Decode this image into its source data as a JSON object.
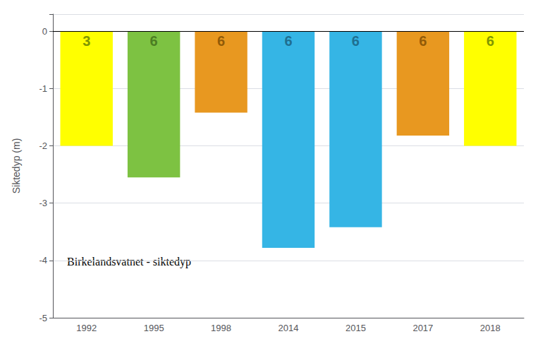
{
  "chart_data": {
    "type": "bar",
    "categories": [
      "1992",
      "1995",
      "1998",
      "2014",
      "2015",
      "2017",
      "2018"
    ],
    "values": [
      -2.0,
      -2.55,
      -1.42,
      -3.78,
      -3.42,
      -1.82,
      -2.0
    ],
    "labels": [
      "3",
      "6",
      "6",
      "6",
      "6",
      "6",
      "6"
    ],
    "colors": [
      "#FFFF00",
      "#7DC242",
      "#E89820",
      "#35B5E5",
      "#35B5E5",
      "#E89820",
      "#FFFF00"
    ],
    "label_colors": [
      "#5C7A00",
      "#3D6B1A",
      "#7A4A00",
      "#1A5C7A",
      "#1A5C7A",
      "#7A4A00",
      "#5C7A00"
    ],
    "ylabel": "Siktedyp (m)",
    "ylim": [
      -5.0,
      0.3
    ],
    "yticks": [
      0,
      -1,
      -2,
      -3,
      -4,
      -5
    ],
    "annotation": "Birkelandsvatnet - siktedyp",
    "grid": true
  }
}
